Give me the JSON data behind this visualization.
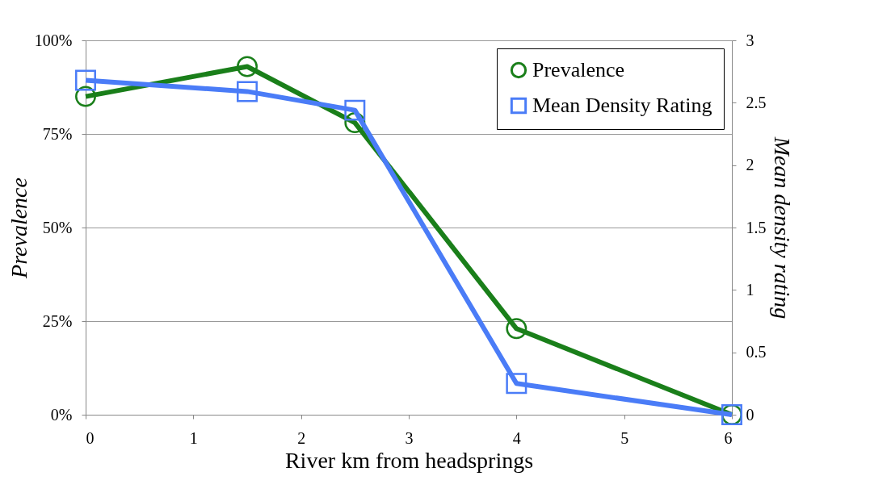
{
  "chart_data": {
    "type": "line",
    "xlabel": "River km from headsprings",
    "ylabel": "Prevalence",
    "y2label": "Mean density rating",
    "x": [
      0,
      1.5,
      2.5,
      4,
      6
    ],
    "xlim": [
      0,
      6
    ],
    "xticks": [
      0,
      1,
      2,
      3,
      4,
      5,
      6
    ],
    "ylim": [
      0,
      100
    ],
    "yticks": [
      {
        "value": 0,
        "label": "0%"
      },
      {
        "value": 25,
        "label": "25%"
      },
      {
        "value": 50,
        "label": "50%"
      },
      {
        "value": 75,
        "label": "75%"
      },
      {
        "value": 100,
        "label": "100%"
      }
    ],
    "y2lim": [
      0,
      3
    ],
    "y2ticks": [
      0,
      0.5,
      1,
      1.5,
      2,
      2.5,
      3
    ],
    "series": [
      {
        "name": "Prevalence",
        "color": "#1a7f1a",
        "marker": "circle",
        "values": [
          85,
          93,
          78,
          23,
          0
        ]
      },
      {
        "name": "Mean Density Rating",
        "color": "#4a7cf7",
        "marker": "square",
        "axis": "y2",
        "values": [
          2.68,
          2.59,
          2.44,
          0.25,
          0
        ]
      }
    ],
    "grid": "y",
    "legend": "top right",
    "line_style": "solid"
  }
}
